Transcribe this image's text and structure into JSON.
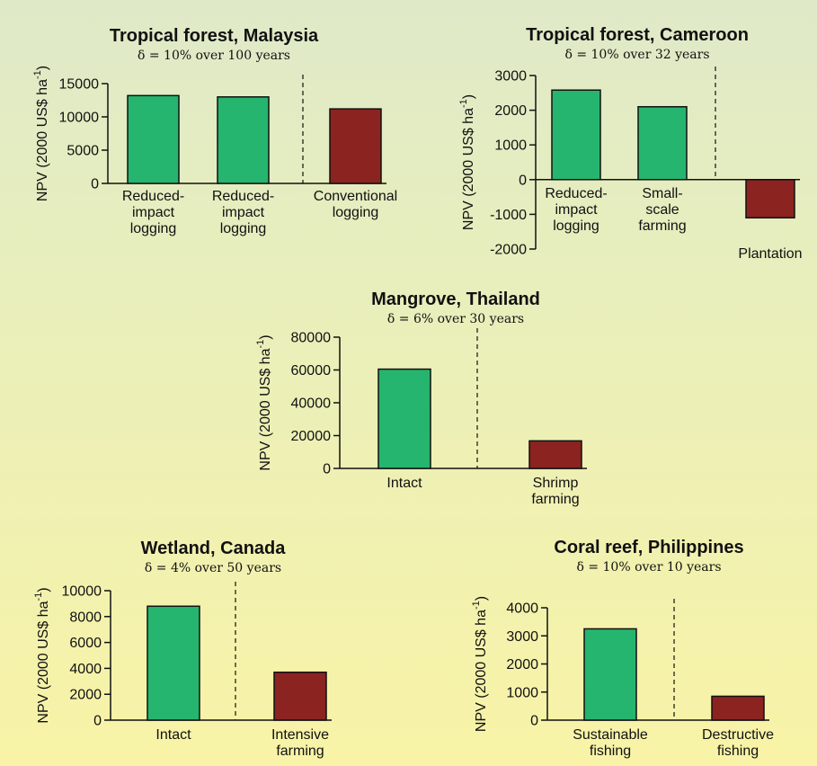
{
  "chart_data": [
    {
      "type": "bar",
      "title": "Tropical forest, Malaysia",
      "subtitle": "δ = 10% over 100 years",
      "ylabel": "NPV (2000 US$ ha",
      "ylabel_sup": "-1",
      "ylabel_end": ")",
      "ylim": [
        0,
        15000
      ],
      "yticks": [
        0,
        5000,
        10000,
        15000
      ],
      "categories": [
        [
          "Reduced-",
          "impact",
          "logging"
        ],
        [
          "Reduced-",
          "impact",
          "logging"
        ],
        [
          "Conventional",
          "logging"
        ]
      ],
      "values": [
        13200,
        13000,
        11200
      ],
      "bar_colors": [
        "#26b56e",
        "#26b56e",
        "#8b2320"
      ],
      "divider_after": 1
    },
    {
      "type": "bar",
      "title": "Tropical forest, Cameroon",
      "subtitle": "δ = 10% over 32 years",
      "ylabel": "NPV (2000 US$ ha",
      "ylabel_sup": "-1",
      "ylabel_end": ")",
      "ylim": [
        -2000,
        3000
      ],
      "yticks": [
        -2000,
        -1000,
        0,
        1000,
        2000,
        3000
      ],
      "categories": [
        [
          "Reduced-",
          "impact",
          "logging"
        ],
        [
          "Small-",
          "scale",
          "farming"
        ],
        [
          "Plantation"
        ]
      ],
      "values": [
        2580,
        2100,
        -1100
      ],
      "bar_colors": [
        "#26b56e",
        "#26b56e",
        "#8b2320"
      ],
      "divider_after": 1
    },
    {
      "type": "bar",
      "title": "Mangrove, Thailand",
      "subtitle": "δ = 6% over 30 years",
      "ylabel": "NPV (2000 US$ ha",
      "ylabel_sup": "-1",
      "ylabel_end": ")",
      "ylim": [
        0,
        80000
      ],
      "yticks": [
        0,
        20000,
        40000,
        60000,
        80000
      ],
      "categories": [
        [
          "Intact"
        ],
        [
          "Shrimp",
          "farming"
        ]
      ],
      "values": [
        60500,
        16800
      ],
      "bar_colors": [
        "#26b56e",
        "#8b2320"
      ],
      "divider_after": 0
    },
    {
      "type": "bar",
      "title": "Wetland, Canada",
      "subtitle": "δ = 4% over 50 years",
      "ylabel": "NPV (2000 US$ ha",
      "ylabel_sup": "-1",
      "ylabel_end": ")",
      "ylim": [
        0,
        10000
      ],
      "yticks": [
        0,
        2000,
        4000,
        6000,
        8000,
        10000
      ],
      "categories": [
        [
          "Intact"
        ],
        [
          "Intensive",
          "farming"
        ]
      ],
      "values": [
        8800,
        3700
      ],
      "bar_colors": [
        "#26b56e",
        "#8b2320"
      ],
      "divider_after": 0
    },
    {
      "type": "bar",
      "title": "Coral reef, Philippines",
      "subtitle": "δ = 10% over 10 years",
      "ylabel": "NPV (2000 US$ ha",
      "ylabel_sup": "-1",
      "ylabel_end": ")",
      "ylim": [
        0,
        4000
      ],
      "yticks": [
        0,
        1000,
        2000,
        3000,
        4000
      ],
      "categories": [
        [
          "Sustainable",
          "fishing"
        ],
        [
          "Destructive",
          "fishing"
        ]
      ],
      "values": [
        3250,
        850
      ],
      "bar_colors": [
        "#26b56e",
        "#8b2320"
      ],
      "divider_after": 0
    }
  ]
}
